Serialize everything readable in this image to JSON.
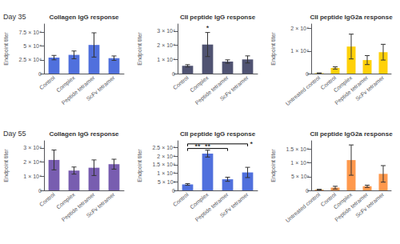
{
  "chart_data": [
    {
      "type": "bar",
      "title": "Collagen IgG response",
      "subtitle": "Day 35",
      "categories": [
        "Control",
        "Complex",
        "Peptide tetramer",
        "ScFv tetramer"
      ],
      "values": [
        29000,
        34000,
        52000,
        28000
      ],
      "errors": [
        4000,
        7000,
        22000,
        4000
      ],
      "ylim": [
        0,
        90000
      ],
      "yticks": [
        0,
        {
          "value": 25000,
          "label": "2.5 × 10⁴"
        },
        {
          "value": 50000,
          "label": "5 × 10⁴"
        },
        {
          "value": 75000,
          "label": "7.5 × 10⁴"
        }
      ],
      "ylabel": "Endpoint titer",
      "grid": false
    },
    {
      "type": "bar",
      "title": "CII peptide IgG response",
      "categories": [
        "Control",
        "Complex",
        "Peptide tetramer",
        "ScFv tetramer"
      ],
      "values": [
        5500,
        20500,
        8500,
        10000
      ],
      "errors": [
        800,
        8500,
        1200,
        2500
      ],
      "ylim": [
        0,
        35000
      ],
      "yticks": [
        0,
        {
          "value": 10000,
          "label": "1 × 10⁴"
        },
        {
          "value": 20000,
          "label": "2 × 10⁴"
        },
        {
          "value": 30000,
          "label": "3 × 10⁴"
        }
      ],
      "ylabel": "Endpoint titer",
      "grid": false,
      "annotations": [
        {
          "text": "*",
          "at": "Complex",
          "y": 29800
        }
      ]
    },
    {
      "type": "bar",
      "title": "CII peptide IgG2a response",
      "categories": [
        "Untreated control",
        "Control",
        "Complex",
        "Peptide tetramer",
        "ScFv tetramer"
      ],
      "values": [
        200,
        2500,
        12000,
        6000,
        9500
      ],
      "errors": [
        100,
        500,
        5500,
        2000,
        3500
      ],
      "ylim": [
        0,
        22000
      ],
      "yticks": [
        0,
        {
          "value": 10000,
          "label": "1 × 10⁴"
        },
        {
          "value": 20000,
          "label": "2 × 10⁴"
        }
      ],
      "ylabel": "Endpoint titer",
      "grid": false
    },
    {
      "type": "bar",
      "title": "Collagen IgG response",
      "subtitle": "Day 55",
      "categories": [
        "Control",
        "Complex",
        "Peptide tetramer",
        "ScFv tetramer"
      ],
      "values": [
        21500,
        14000,
        16000,
        18500
      ],
      "errors": [
        7000,
        2500,
        5500,
        3500
      ],
      "ylim": [
        0,
        35000
      ],
      "yticks": [
        0,
        {
          "value": 10000,
          "label": "1 × 10⁴"
        },
        {
          "value": 20000,
          "label": "2 × 10⁴"
        },
        {
          "value": 30000,
          "label": "3 × 10⁴"
        }
      ],
      "ylabel": "Endpoint titer",
      "grid": false
    },
    {
      "type": "bar",
      "title": "CII peptide IgG response",
      "categories": [
        "Control",
        "Complex",
        "Peptide tetramer",
        "ScFv tetramer"
      ],
      "values": [
        3500,
        21500,
        6500,
        10500
      ],
      "errors": [
        500,
        2000,
        1200,
        3000
      ],
      "ylim": [
        0,
        29000
      ],
      "yticks": [
        0,
        {
          "value": 5000,
          "label": "5 × 10³"
        },
        {
          "value": 10000,
          "label": "1 × 10⁴"
        },
        {
          "value": 15000,
          "label": "1.5 × 10⁴"
        },
        {
          "value": 20000,
          "label": "2 × 10⁴"
        },
        {
          "value": 25000,
          "label": "2.5 × 10⁴"
        }
      ],
      "ylabel": "Endpoint titer",
      "grid": false,
      "annotations": [
        {
          "text": "*",
          "from": "Control",
          "to": "ScFv tetramer",
          "y": 27200
        },
        {
          "from": "Control",
          "to": "Peptide tetramer",
          "y": 24500
        },
        {
          "text": "**",
          "at": "Complex",
          "y": 23700
        },
        {
          "text": "**",
          "between": [
            "Control",
            "Complex"
          ],
          "y": 23800
        }
      ]
    },
    {
      "type": "bar",
      "title": "CII peptide IgG2a response",
      "categories": [
        "Untreated control",
        "Control",
        "Complex",
        "Peptide tetramer",
        "ScFv tetramer"
      ],
      "values": [
        300,
        1000,
        11000,
        1500,
        6000
      ],
      "errors": [
        100,
        500,
        5500,
        400,
        3000
      ],
      "ylim": [
        0,
        18000
      ],
      "yticks": [
        0,
        {
          "value": 5000,
          "label": "5 × 10³"
        },
        {
          "value": 10000,
          "label": "1 × 10⁴"
        },
        {
          "value": 15000,
          "label": "1.5 × 10⁴"
        }
      ],
      "ylabel": "Endpoint titer",
      "grid": false
    }
  ]
}
